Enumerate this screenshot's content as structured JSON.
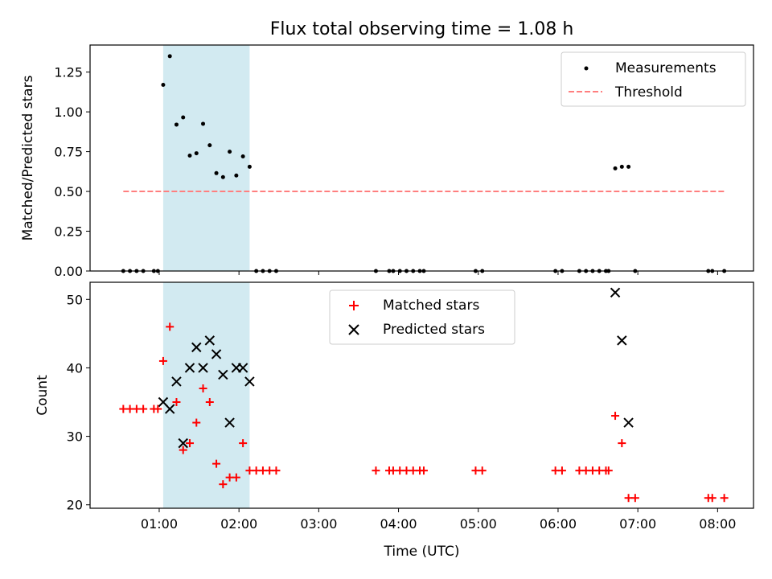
{
  "chart_data": [
    {
      "type": "scatter",
      "title": "Flux total observing time = 1.08 h",
      "xlabel": "",
      "ylabel": "Matched/Predicted stars",
      "xlim": [
        "00:08",
        "08:27"
      ],
      "ylim": [
        0,
        1.42
      ],
      "yticks": [
        0.0,
        0.25,
        0.5,
        0.75,
        1.0,
        1.25
      ],
      "ytick_labels": [
        "0.00",
        "0.25",
        "0.50",
        "0.75",
        "1.00",
        "1.25"
      ],
      "xticks": [
        "01:00",
        "02:00",
        "03:00",
        "04:00",
        "05:00",
        "06:00",
        "07:00",
        "08:00"
      ],
      "xtick_labels_shown": false,
      "shaded_span": {
        "x": [
          "01:03",
          "02:08"
        ],
        "color": "#add8e6"
      },
      "legend_position": "top-right",
      "series": [
        {
          "name": "Measurements",
          "marker": "dot",
          "color": "#000000",
          "points": [
            [
              "00:33",
              0
            ],
            [
              "00:38",
              0
            ],
            [
              "00:43",
              0
            ],
            [
              "00:48",
              0
            ],
            [
              "00:56",
              0
            ],
            [
              "00:59",
              0
            ],
            [
              "01:03",
              1.17
            ],
            [
              "01:08",
              1.35
            ],
            [
              "01:13",
              0.92
            ],
            [
              "01:18",
              0.965
            ],
            [
              "01:23",
              0.725
            ],
            [
              "01:28",
              0.74
            ],
            [
              "01:33",
              0.925
            ],
            [
              "01:38",
              0.79
            ],
            [
              "01:43",
              0.615
            ],
            [
              "01:48",
              0.59
            ],
            [
              "01:53",
              0.75
            ],
            [
              "01:58",
              0.6
            ],
            [
              "02:03",
              0.72
            ],
            [
              "02:08",
              0.655
            ],
            [
              "02:13",
              0
            ],
            [
              "02:18",
              0
            ],
            [
              "02:23",
              0
            ],
            [
              "02:28",
              0
            ],
            [
              "03:43",
              0
            ],
            [
              "03:53",
              0
            ],
            [
              "03:56",
              0
            ],
            [
              "04:01",
              0
            ],
            [
              "04:06",
              0
            ],
            [
              "04:11",
              0
            ],
            [
              "04:16",
              0
            ],
            [
              "04:19",
              0
            ],
            [
              "04:58",
              0
            ],
            [
              "05:03",
              0
            ],
            [
              "05:58",
              0
            ],
            [
              "06:03",
              0
            ],
            [
              "06:16",
              0
            ],
            [
              "06:21",
              0
            ],
            [
              "06:26",
              0
            ],
            [
              "06:31",
              0
            ],
            [
              "06:36",
              0
            ],
            [
              "06:38",
              0
            ],
            [
              "06:43",
              0.645
            ],
            [
              "06:48",
              0.655
            ],
            [
              "06:53",
              0.655
            ],
            [
              "06:58",
              0
            ],
            [
              "07:53",
              0
            ],
            [
              "07:56",
              0
            ],
            [
              "08:05",
              0
            ]
          ]
        },
        {
          "name": "Threshold",
          "style": "dashed-line",
          "color": "#ff7f7f",
          "points": [
            [
              "00:33",
              0.5
            ],
            [
              "08:05",
              0.5
            ]
          ]
        }
      ]
    },
    {
      "type": "scatter",
      "title": "",
      "xlabel": "Time (UTC)",
      "ylabel": "Count",
      "xlim": [
        "00:08",
        "08:27"
      ],
      "ylim": [
        19.5,
        52.5
      ],
      "yticks": [
        20,
        30,
        40,
        50
      ],
      "ytick_labels": [
        "20",
        "30",
        "40",
        "50"
      ],
      "xticks": [
        "01:00",
        "02:00",
        "03:00",
        "04:00",
        "05:00",
        "06:00",
        "07:00",
        "08:00"
      ],
      "xtick_labels": [
        "01:00",
        "02:00",
        "03:00",
        "04:00",
        "05:00",
        "06:00",
        "07:00",
        "08:00"
      ],
      "shaded_span": {
        "x": [
          "01:03",
          "02:08"
        ],
        "color": "#add8e6"
      },
      "legend_position": "top-center",
      "series": [
        {
          "name": "Matched stars",
          "marker": "plus",
          "color": "#ff0000",
          "points": [
            [
              "00:33",
              34
            ],
            [
              "00:38",
              34
            ],
            [
              "00:43",
              34
            ],
            [
              "00:48",
              34
            ],
            [
              "00:56",
              34
            ],
            [
              "00:59",
              34
            ],
            [
              "01:03",
              41
            ],
            [
              "01:08",
              46
            ],
            [
              "01:13",
              35
            ],
            [
              "01:18",
              28
            ],
            [
              "01:23",
              29
            ],
            [
              "01:28",
              32
            ],
            [
              "01:33",
              37
            ],
            [
              "01:38",
              35
            ],
            [
              "01:43",
              26
            ],
            [
              "01:48",
              23
            ],
            [
              "01:53",
              24
            ],
            [
              "01:58",
              24
            ],
            [
              "02:03",
              29
            ],
            [
              "02:08",
              25
            ],
            [
              "02:13",
              25
            ],
            [
              "02:18",
              25
            ],
            [
              "02:23",
              25
            ],
            [
              "02:28",
              25
            ],
            [
              "03:43",
              25
            ],
            [
              "03:53",
              25
            ],
            [
              "03:56",
              25
            ],
            [
              "04:01",
              25
            ],
            [
              "04:06",
              25
            ],
            [
              "04:11",
              25
            ],
            [
              "04:16",
              25
            ],
            [
              "04:19",
              25
            ],
            [
              "04:58",
              25
            ],
            [
              "05:03",
              25
            ],
            [
              "05:58",
              25
            ],
            [
              "06:03",
              25
            ],
            [
              "06:16",
              25
            ],
            [
              "06:21",
              25
            ],
            [
              "06:26",
              25
            ],
            [
              "06:31",
              25
            ],
            [
              "06:36",
              25
            ],
            [
              "06:38",
              25
            ],
            [
              "06:43",
              33
            ],
            [
              "06:48",
              29
            ],
            [
              "06:53",
              21
            ],
            [
              "06:58",
              21
            ],
            [
              "07:53",
              21
            ],
            [
              "07:56",
              21
            ],
            [
              "08:05",
              21
            ]
          ]
        },
        {
          "name": "Predicted stars",
          "marker": "x",
          "color": "#000000",
          "points": [
            [
              "01:03",
              35
            ],
            [
              "01:08",
              34
            ],
            [
              "01:13",
              38
            ],
            [
              "01:18",
              29
            ],
            [
              "01:23",
              40
            ],
            [
              "01:28",
              43
            ],
            [
              "01:33",
              40
            ],
            [
              "01:38",
              44
            ],
            [
              "01:43",
              42
            ],
            [
              "01:48",
              39
            ],
            [
              "01:53",
              32
            ],
            [
              "01:58",
              40
            ],
            [
              "02:03",
              40
            ],
            [
              "02:08",
              38
            ],
            [
              "06:43",
              51
            ],
            [
              "06:48",
              44
            ],
            [
              "06:53",
              32
            ]
          ]
        }
      ]
    }
  ]
}
